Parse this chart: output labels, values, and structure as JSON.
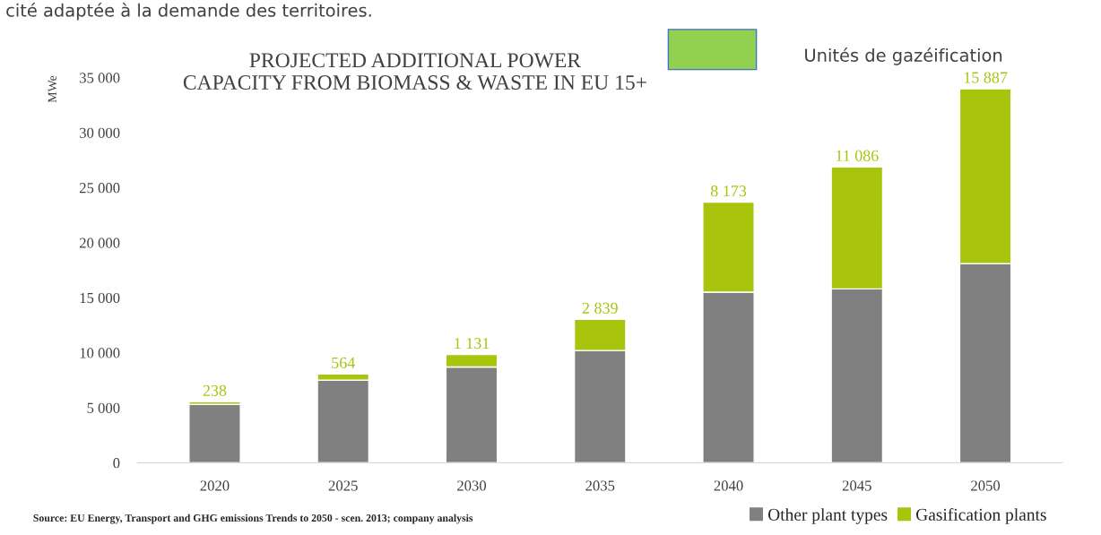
{
  "chart_data": {
    "type": "bar",
    "stacked": true,
    "title": "PROJECTED ADDITIONAL POWER\nCAPACITY FROM BIOMASS & WASTE IN EU 15+",
    "ylabel": "MWe",
    "categories": [
      "2020",
      "2025",
      "2030",
      "2035",
      "2040",
      "2045",
      "2050"
    ],
    "series": [
      {
        "name": "Other plant types",
        "color": "#808080",
        "values": [
          5300,
          7500,
          8700,
          10200,
          15500,
          15800,
          18100
        ]
      },
      {
        "name": "Gasification plants",
        "color": "#a8c40c",
        "values": [
          238,
          564,
          1131,
          2839,
          8173,
          11086,
          15887
        ],
        "value_labels": [
          "238",
          "564",
          "1 131",
          "2 839",
          "8 173",
          "11 086",
          "15 887"
        ]
      }
    ],
    "ylim": [
      0,
      35000
    ],
    "yticks": [
      0,
      {
        "value": 5000,
        "label": "5 000"
      },
      {
        "value": 10000,
        "label": "10 000"
      },
      {
        "value": 15000,
        "label": "15 000"
      },
      {
        "value": 20000,
        "label": "20 000"
      },
      {
        "value": 25000,
        "label": "25 000"
      },
      {
        "value": 30000,
        "label": "30 000"
      },
      {
        "value": 35000,
        "label": "35 000"
      }
    ],
    "legend": "bottom right",
    "annotations": [
      "cité adaptée à la demande des territoires.",
      "Unités de gazéification",
      "Source: EU Energy, Transport and GHG emissions Trends to 2050 - scen. 2013; company analysis"
    ]
  }
}
